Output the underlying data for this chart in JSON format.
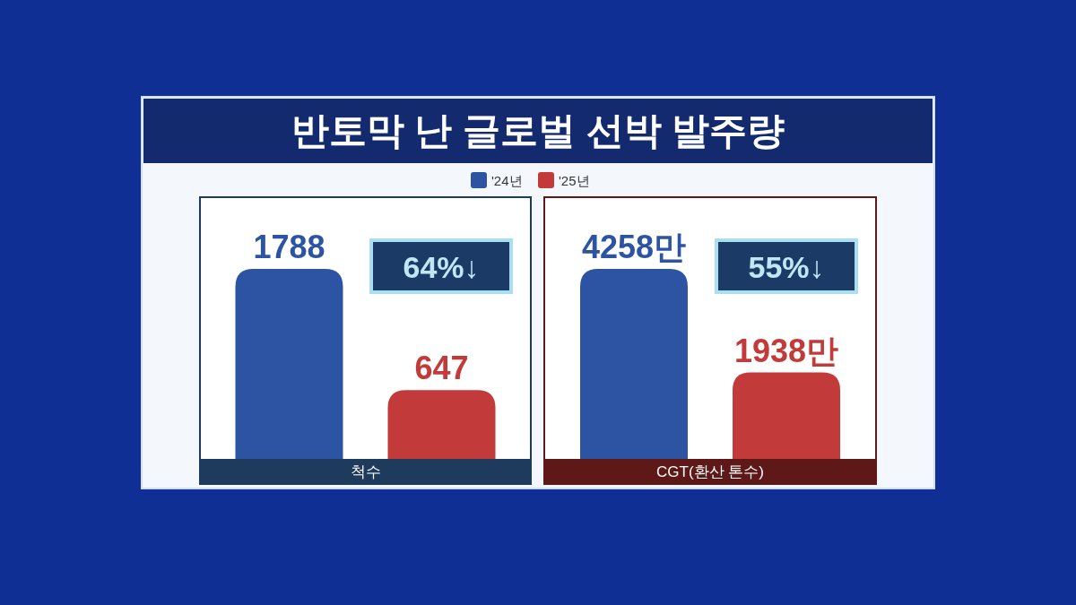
{
  "chart_data": [
    {
      "type": "bar",
      "title": "반토막 난 글로벌 선박 발주량",
      "legend": "top",
      "categories": [
        null
      ],
      "xlabel": "척수",
      "data_labels": true,
      "annotations": [
        "64%↓"
      ],
      "series": [
        {
          "name": "'24년",
          "color": "#2c54a3",
          "values": [
            1788
          ]
        },
        {
          "name": "'25년",
          "color": "#c23a3a",
          "values": [
            647
          ]
        }
      ]
    },
    {
      "type": "bar",
      "categories": [
        null
      ],
      "xlabel": "CGT(환산 톤수)",
      "annotations": [
        "55%↓"
      ],
      "series": [
        {
          "color": "#2c54a3",
          "values": [
            4258
          ],
          "value_labels": [
            "4258만"
          ]
        },
        {
          "color": "#c23a3a",
          "values": [
            1938
          ],
          "value_labels": [
            "1938만"
          ]
        }
      ]
    }
  ]
}
